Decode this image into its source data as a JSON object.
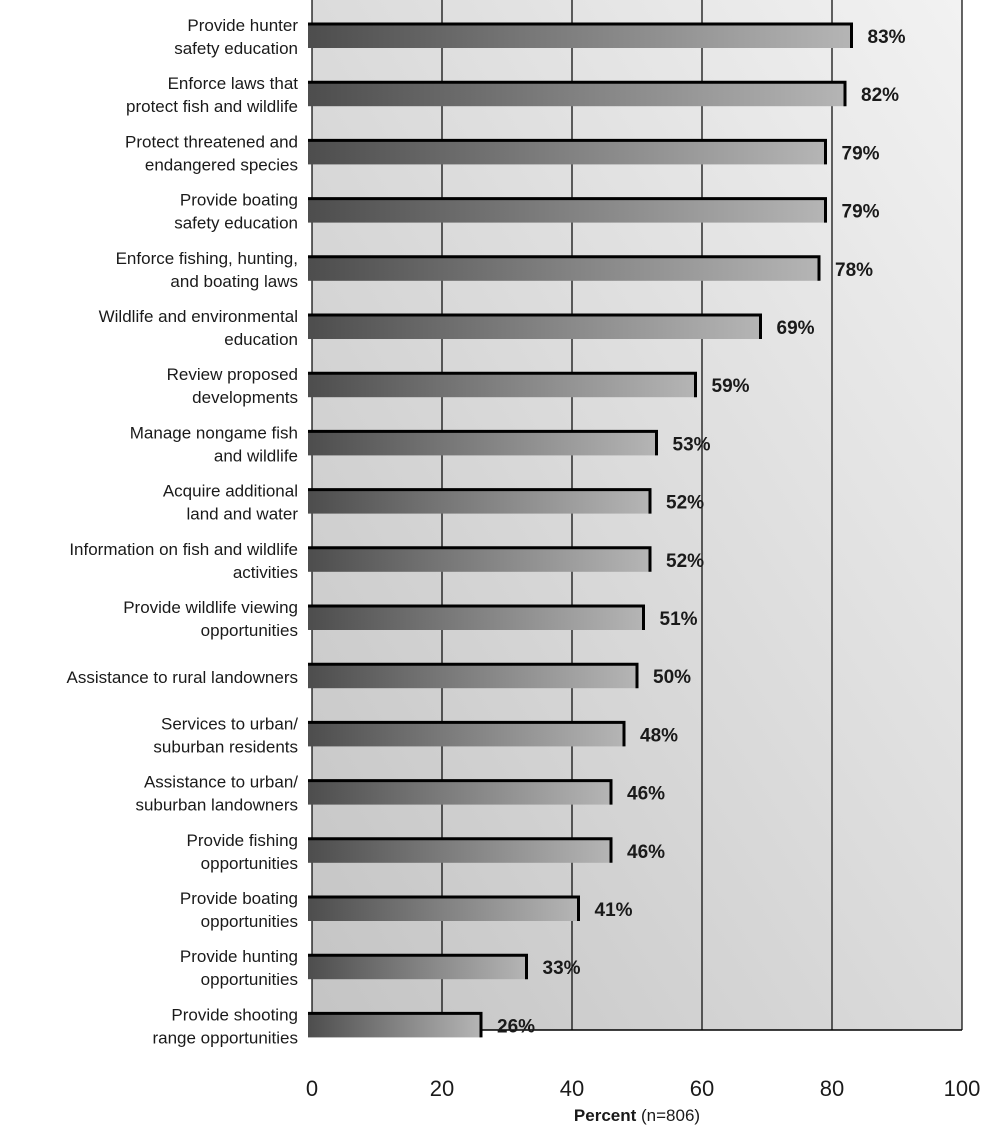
{
  "chart_data": {
    "type": "bar",
    "orientation": "horizontal",
    "categories": [
      [
        "Provide hunter",
        "safety education"
      ],
      [
        "Enforce laws that",
        "protect fish and wildlife"
      ],
      [
        "Protect threatened and",
        "endangered species"
      ],
      [
        "Provide boating",
        "safety education"
      ],
      [
        "Enforce fishing, hunting,",
        "and boating laws"
      ],
      [
        "Wildlife and environmental",
        "education"
      ],
      [
        "Review proposed",
        "developments"
      ],
      [
        "Manage nongame fish",
        "and wildlife"
      ],
      [
        "Acquire additional",
        "land and water"
      ],
      [
        "Information on fish and wildlife",
        "activities"
      ],
      [
        "Provide wildlife viewing",
        "opportunities"
      ],
      [
        "Assistance to rural landowners"
      ],
      [
        "Services to urban/",
        "suburban residents"
      ],
      [
        "Assistance to urban/",
        "suburban landowners"
      ],
      [
        "Provide fishing",
        "opportunities"
      ],
      [
        "Provide boating",
        "opportunities"
      ],
      [
        "Provide hunting",
        "opportunities"
      ],
      [
        "Provide shooting",
        "range opportunities"
      ]
    ],
    "values": [
      83,
      82,
      79,
      79,
      78,
      69,
      59,
      53,
      52,
      52,
      51,
      50,
      48,
      46,
      46,
      41,
      33,
      26
    ],
    "data_labels": [
      "83%",
      "82%",
      "79%",
      "79%",
      "78%",
      "69%",
      "59%",
      "53%",
      "52%",
      "52%",
      "51%",
      "50%",
      "48%",
      "46%",
      "46%",
      "41%",
      "33%",
      "26%"
    ],
    "x_ticks": [
      "0",
      "20",
      "40",
      "60",
      "80",
      "100"
    ],
    "xlim": [
      0,
      100
    ],
    "xlabel_bold": "Percent",
    "xlabel_rest": " (n=806)",
    "grid": true,
    "colors": {
      "bar_dark": "#4d4d4d",
      "bar_light": "#b5b5b5",
      "bar_edge": "#000000",
      "background_light": "#f2f2f2",
      "background_dark": "#c4c4c4",
      "text": "#1a1a1a"
    }
  }
}
